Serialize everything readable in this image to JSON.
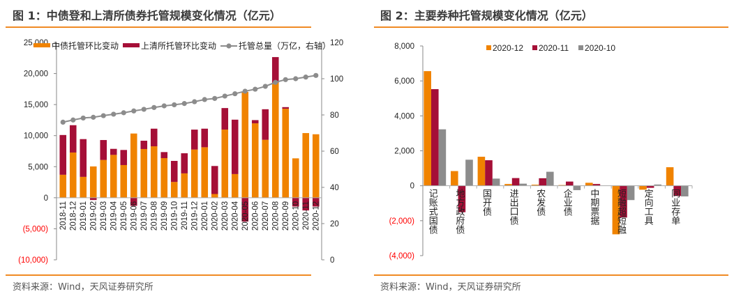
{
  "colors": {
    "orange": "#f08300",
    "crimson": "#a50f37",
    "gray": "#8c8c8c",
    "negative_tick": "#ff0000",
    "rule": "#f08a24"
  },
  "panel1": {
    "title": "图 1：中债登和上清所债券托管规模变化情况（亿元）",
    "source": "资料来源：Wind，天风证券研究所"
  },
  "panel2": {
    "title": "图 2：主要券种托管规模变化情况（亿元）",
    "source": "资料来源：Wind，天风证券研究所"
  },
  "chart_data": [
    {
      "type": "bar",
      "stacked": true,
      "categories": [
        "2018-11",
        "2018-12",
        "2019-01",
        "2019-02",
        "2019-03",
        "2019-04",
        "2019-05",
        "2019-06",
        "2019-07",
        "2019-08",
        "2019-09",
        "2019-10",
        "2019-11",
        "2019-12",
        "2020-01",
        "2020-02",
        "2020-03",
        "2020-04",
        "2020-05",
        "2020-06",
        "2020-07",
        "2020-08",
        "2020-09",
        "2020-10",
        "2020-11",
        "2020-12"
      ],
      "ylim": [
        -10000,
        25000
      ],
      "yticks": [
        -10000,
        -5000,
        0,
        5000,
        10000,
        15000,
        20000,
        25000
      ],
      "ytick_labels": [
        "(10,000)",
        "(5,000)",
        "0",
        "5,000",
        "10,000",
        "15,000",
        "20,000",
        "25,000"
      ],
      "y2lim": [
        0,
        120
      ],
      "y2ticks": [
        "0",
        "20",
        "40",
        "60",
        "80",
        "100",
        "120"
      ],
      "legend_position": "top",
      "series": [
        {
          "name": "中债托管环比变动",
          "kind": "bar",
          "color": "#f08300",
          "values": [
            3700,
            7280,
            3360,
            5040,
            6080,
            6900,
            5260,
            10340,
            7840,
            8280,
            6380,
            2540,
            3920,
            7760,
            8130,
            600,
            10970,
            3810,
            17050,
            11980,
            9330,
            18550,
            14330,
            6340,
            10410,
            10220
          ]
        },
        {
          "name": "上清所托管环比变动",
          "kind": "bar",
          "color": "#a50f37",
          "values": [
            6400,
            4400,
            6080,
            -370,
            3210,
            970,
            2430,
            -1300,
            1340,
            2840,
            970,
            3390,
            3240,
            3210,
            2990,
            4510,
            3470,
            8760,
            -3840,
            520,
            4920,
            4100,
            260,
            -1420,
            -2050,
            -1420
          ]
        },
        {
          "name": "托管总量（万亿，右轴）",
          "kind": "line",
          "axis": "right",
          "color": "#8c8c8c",
          "values": [
            76.0,
            77.2,
            78.3,
            78.7,
            79.6,
            80.4,
            81.2,
            82.2,
            83.1,
            84.1,
            85.0,
            85.6,
            86.3,
            87.3,
            88.5,
            89.1,
            90.4,
            91.7,
            93.1,
            94.2,
            95.8,
            98.0,
            99.5,
            100.0,
            100.9,
            101.8
          ]
        }
      ]
    },
    {
      "type": "bar",
      "categories": [
        "记账式国债",
        "地方政府债",
        "国开债",
        "进出口债",
        "农发债",
        "企业债",
        "中期票据",
        "短融超短融",
        "定向工具",
        "同业存单"
      ],
      "ylim": [
        -4000,
        8000
      ],
      "yticks": [
        -4000,
        -2000,
        0,
        2000,
        4000,
        6000,
        8000
      ],
      "ytick_labels": [
        "(4,000)",
        "(2,000)",
        "0",
        "2,000",
        "4,000",
        "6,000",
        "8,000"
      ],
      "legend_position": "top",
      "series": [
        {
          "name": "2020-12",
          "color": "#f08300",
          "values": [
            6560,
            840,
            1660,
            100,
            60,
            40,
            170,
            -2780,
            -225,
            1060
          ]
        },
        {
          "name": "2020-11",
          "color": "#a50f37",
          "values": [
            5530,
            -1515,
            1460,
            440,
            430,
            240,
            100,
            -1820,
            -120,
            -585
          ]
        },
        {
          "name": "2020-10",
          "color": "#8c8c8c",
          "values": [
            3230,
            1490,
            410,
            120,
            800,
            -250,
            0,
            -820,
            70,
            -610
          ]
        }
      ]
    }
  ]
}
